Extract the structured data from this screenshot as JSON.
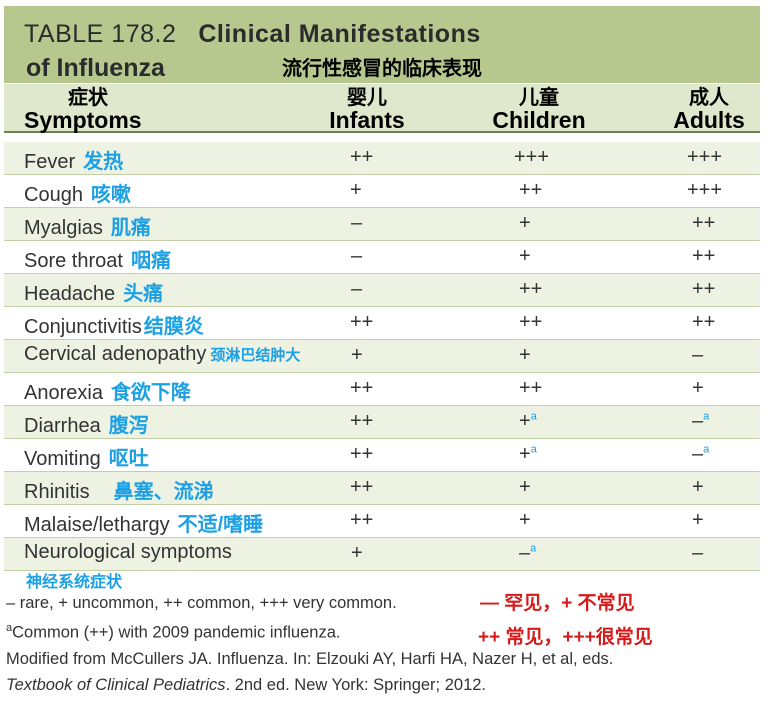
{
  "title": {
    "table_no": "TABLE 178.2",
    "title_main": "Clinical Manifestations",
    "title_line2": "of Influenza",
    "title_cn": "流行性感冒的临床表现"
  },
  "headers": {
    "symptoms_cn": "症状",
    "symptoms_en": "Symptoms",
    "infants_cn": "婴儿",
    "infants_en": "Infants",
    "children_cn": "儿童",
    "children_en": "Children",
    "adults_cn": "成人",
    "adults_en": "Adults"
  },
  "rows": [
    {
      "en": "Fever",
      "cn": "发热",
      "infants": "++",
      "children": "+++",
      "adults": "+++",
      "children_note": "",
      "adults_note": ""
    },
    {
      "en": "Cough",
      "cn": "咳嗽",
      "infants": "+",
      "children": "++",
      "adults": "+++",
      "children_note": "",
      "adults_note": ""
    },
    {
      "en": "Myalgias",
      "cn": "肌痛",
      "infants": "–",
      "children": "+",
      "adults": "++",
      "children_note": "",
      "adults_note": ""
    },
    {
      "en": "Sore throat",
      "cn": "咽痛",
      "infants": "–",
      "children": "+",
      "adults": "++",
      "children_note": "",
      "adults_note": ""
    },
    {
      "en": "Headache",
      "cn": "头痛",
      "infants": "–",
      "children": "++",
      "adults": "++",
      "children_note": "",
      "adults_note": ""
    },
    {
      "en": "Conjunctivitis",
      "cn": "结膜炎",
      "infants": "++",
      "children": "++",
      "adults": "++",
      "children_note": "",
      "adults_note": ""
    },
    {
      "en": "Cervical adenopathy",
      "cn": "颈淋巴结肿大",
      "infants": "+",
      "children": "+",
      "adults": "–",
      "children_note": "",
      "adults_note": ""
    },
    {
      "en": "Anorexia",
      "cn": "食欲下降",
      "infants": "++",
      "children": "++",
      "adults": "+",
      "children_note": "",
      "adults_note": ""
    },
    {
      "en": "Diarrhea",
      "cn": "腹泻",
      "infants": "++",
      "children": "+",
      "adults": "–",
      "children_note": "a",
      "adults_note": "a"
    },
    {
      "en": "Vomiting",
      "cn": "呕吐",
      "infants": "++",
      "children": "+",
      "adults": "–",
      "children_note": "a",
      "adults_note": "a"
    },
    {
      "en": "Rhinitis",
      "cn": "鼻塞、流涕",
      "infants": "++",
      "children": "+",
      "adults": "+",
      "children_note": "",
      "adults_note": ""
    },
    {
      "en": "Malaise/lethargy",
      "cn": "不适/嗜睡",
      "infants": "++",
      "children": "+",
      "adults": "+",
      "children_note": "",
      "adults_note": ""
    },
    {
      "en": "Neurological symptoms",
      "cn": "",
      "infants": "+",
      "children": "–",
      "adults": "–",
      "children_note": "a",
      "adults_note": ""
    }
  ],
  "neuro_cn": "神经系统症状",
  "footnotes": {
    "legend": "– rare, + uncommon, ++ common, +++ very common.",
    "note_a_marker": "a",
    "note_a": "Common (++) with 2009 pandemic influenza.",
    "source_1": "Modified from McCullers JA. Influenza. In: Elzouki AY, Harfi HA, Nazer H, et al, eds.",
    "source_2_italic": "Textbook of Clinical Pediatrics",
    "source_2_rest": ". 2nd ed. New York: Springer; 2012."
  },
  "annotations": {
    "legend_cn_1": "— 罕见，+ 不常见",
    "legend_cn_2": "++ 常见，+++很常见"
  },
  "colors": {
    "title_bg": "#b7c88f",
    "header_bg": "#dfe7cc",
    "chinese_blue": "#1da0e4",
    "annotation_red": "#d61a1a"
  }
}
